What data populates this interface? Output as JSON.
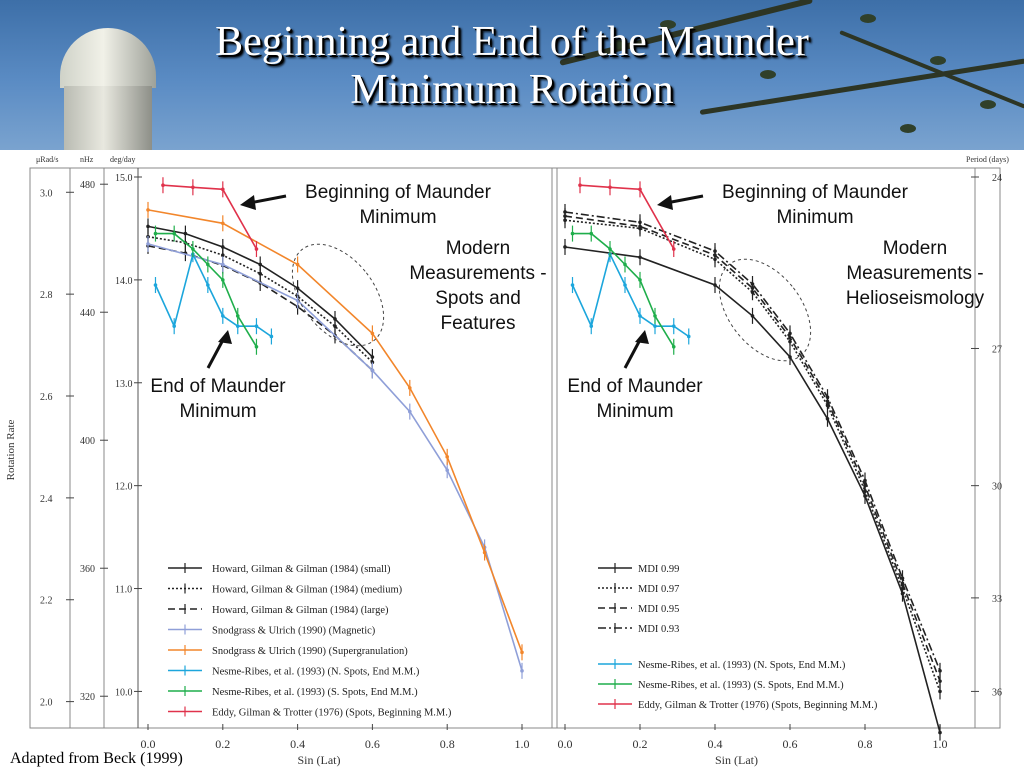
{
  "slide": {
    "title_line1": "Beginning and End of the Maunder",
    "title_line2": "Minimum Rotation",
    "credit": "Adapted from Beck (1999)"
  },
  "chart_data": [
    {
      "type": "line",
      "panel": "left",
      "xlabel": "Sin (Lat)",
      "xlim": [
        0.0,
        1.0
      ],
      "x_ticks": [
        "0.0",
        "0.2",
        "0.4",
        "0.6",
        "0.8",
        "1.0"
      ],
      "ylabel": "Rotation Rate",
      "y_axis_units": [
        "μRad/s",
        "nHz",
        "deg/day"
      ],
      "ylim_deg_day": [
        9.8,
        15.0
      ],
      "deg_day_ticks": [
        "15.0",
        "14.0",
        "13.0",
        "12.0",
        "11.0",
        "10.0"
      ],
      "urad_ticks": [
        "3.0",
        "2.8",
        "2.6",
        "2.4",
        "2.2",
        "2.0"
      ],
      "nhz_ticks": [
        "480",
        "440",
        "400",
        "360",
        "320"
      ],
      "annotations": {
        "beginning": [
          "Beginning of Maunder",
          "Minimum"
        ],
        "end": [
          "End of Maunder",
          "Minimum"
        ],
        "modern": [
          "Modern",
          "Measurements -",
          "Spots and",
          "Features"
        ]
      },
      "legend": "bottom",
      "series": [
        {
          "name": "Howard, Gilman & Gilman (1984) (small)",
          "color": "#222222",
          "style": "solid",
          "x": [
            0.0,
            0.1,
            0.2,
            0.3,
            0.4,
            0.5,
            0.6
          ],
          "y": [
            14.52,
            14.45,
            14.32,
            14.15,
            13.92,
            13.62,
            13.25
          ]
        },
        {
          "name": "Howard, Gilman & Gilman (1984) (medium)",
          "color": "#222222",
          "style": "dotted",
          "x": [
            0.0,
            0.1,
            0.2,
            0.3,
            0.4,
            0.5,
            0.6
          ],
          "y": [
            14.42,
            14.36,
            14.24,
            14.06,
            13.84,
            13.55,
            13.2
          ]
        },
        {
          "name": "Howard, Gilman & Gilman (1984) (large)",
          "color": "#222222",
          "style": "dashed",
          "x": [
            0.0,
            0.1,
            0.2,
            0.3,
            0.4,
            0.5,
            0.6
          ],
          "y": [
            14.33,
            14.26,
            14.14,
            13.97,
            13.74,
            13.46,
            13.12
          ]
        },
        {
          "name": "Snodgrass & Ulrich (1990) (Magnetic)",
          "color": "#8f9fd8",
          "style": "solid",
          "x": [
            0.0,
            0.2,
            0.4,
            0.6,
            0.7,
            0.8,
            0.9,
            1.0
          ],
          "y": [
            14.35,
            14.15,
            13.8,
            13.12,
            12.72,
            12.15,
            11.4,
            10.2
          ]
        },
        {
          "name": "Snodgrass & Ulrich (1990) (Supergranulation)",
          "color": "#f2862b",
          "style": "solid",
          "x": [
            0.0,
            0.2,
            0.4,
            0.6,
            0.7,
            0.8,
            0.9,
            1.0
          ],
          "y": [
            14.68,
            14.55,
            14.15,
            13.48,
            12.95,
            12.28,
            11.35,
            10.38
          ]
        },
        {
          "name": "Nesme-Ribes, et al. (1993) (N. Spots, End M.M.)",
          "color": "#1ca6dc",
          "style": "solid",
          "x": [
            0.02,
            0.07,
            0.12,
            0.16,
            0.2,
            0.24,
            0.29,
            0.33
          ],
          "y": [
            13.95,
            13.55,
            14.25,
            13.95,
            13.65,
            13.55,
            13.55,
            13.45
          ]
        },
        {
          "name": "Nesme-Ribes, et al. (1993) (S. Spots, End M.M.)",
          "color": "#1fae4b",
          "style": "solid",
          "x": [
            0.02,
            0.07,
            0.12,
            0.16,
            0.2,
            0.24,
            0.29
          ],
          "y": [
            14.45,
            14.45,
            14.3,
            14.15,
            14.0,
            13.65,
            13.35
          ]
        },
        {
          "name": "Eddy, Gilman & Trotter (1976) (Spots, Beginning M.M.)",
          "color": "#e0324b",
          "style": "solid",
          "x": [
            0.04,
            0.12,
            0.2,
            0.29
          ],
          "y": [
            14.92,
            14.9,
            14.88,
            14.3
          ]
        }
      ]
    },
    {
      "type": "line",
      "panel": "right",
      "xlabel": "Sin (Lat)",
      "xlim": [
        0.0,
        1.0
      ],
      "x_ticks": [
        "0.0",
        "0.2",
        "0.4",
        "0.6",
        "0.8",
        "1.0"
      ],
      "y_axis_units": [
        "Period (days)"
      ],
      "period_ticks": [
        "24",
        "27",
        "30",
        "33",
        "36"
      ],
      "annotations": {
        "beginning": [
          "Beginning of Maunder",
          "Minimum"
        ],
        "end": [
          "End of Maunder",
          "Minimum"
        ],
        "modern": [
          "Modern",
          "Measurements -",
          "Helioseismology"
        ]
      },
      "legend": "bottom",
      "series": [
        {
          "name": "MDI 0.99",
          "color": "#222222",
          "style": "solid",
          "x": [
            0.0,
            0.2,
            0.4,
            0.5,
            0.6,
            0.7,
            0.8,
            0.9,
            1.0
          ],
          "y": [
            14.32,
            14.22,
            13.95,
            13.65,
            13.25,
            12.65,
            11.9,
            10.95,
            9.6
          ]
        },
        {
          "name": "MDI 0.97",
          "color": "#222222",
          "style": "dotted",
          "x": [
            0.0,
            0.2,
            0.4,
            0.5,
            0.6,
            0.7,
            0.8,
            0.9,
            1.0
          ],
          "y": [
            14.58,
            14.5,
            14.2,
            13.88,
            13.4,
            12.78,
            11.95,
            11.0,
            10.0
          ]
        },
        {
          "name": "MDI 0.95",
          "color": "#222222",
          "style": "dashed",
          "x": [
            0.0,
            0.2,
            0.4,
            0.5,
            0.6,
            0.7,
            0.8,
            0.9,
            1.0
          ],
          "y": [
            14.62,
            14.52,
            14.24,
            13.92,
            13.44,
            12.82,
            12.0,
            11.05,
            10.1
          ]
        },
        {
          "name": "MDI 0.93",
          "color": "#222222",
          "style": "dashdot",
          "x": [
            0.0,
            0.2,
            0.4,
            0.5,
            0.6,
            0.7,
            0.8,
            0.9,
            1.0
          ],
          "y": [
            14.66,
            14.56,
            14.28,
            13.96,
            13.48,
            12.86,
            12.05,
            11.1,
            10.2
          ]
        },
        {
          "name": "Nesme-Ribes, et al. (1993) (N. Spots, End M.M.)",
          "color": "#1ca6dc",
          "style": "solid",
          "x": [
            0.02,
            0.07,
            0.12,
            0.16,
            0.2,
            0.24,
            0.29,
            0.33
          ],
          "y": [
            13.95,
            13.55,
            14.25,
            13.95,
            13.65,
            13.55,
            13.55,
            13.45
          ]
        },
        {
          "name": "Nesme-Ribes, et al. (1993) (S. Spots, End M.M.)",
          "color": "#1fae4b",
          "style": "solid",
          "x": [
            0.02,
            0.07,
            0.12,
            0.16,
            0.2,
            0.24,
            0.29
          ],
          "y": [
            14.45,
            14.45,
            14.3,
            14.15,
            14.0,
            13.65,
            13.35
          ]
        },
        {
          "name": "Eddy, Gilman & Trotter (1976) (Spots, Beginning M.M.)",
          "color": "#e0324b",
          "style": "solid",
          "x": [
            0.04,
            0.12,
            0.2,
            0.29
          ],
          "y": [
            14.92,
            14.9,
            14.88,
            14.3
          ]
        }
      ]
    }
  ]
}
